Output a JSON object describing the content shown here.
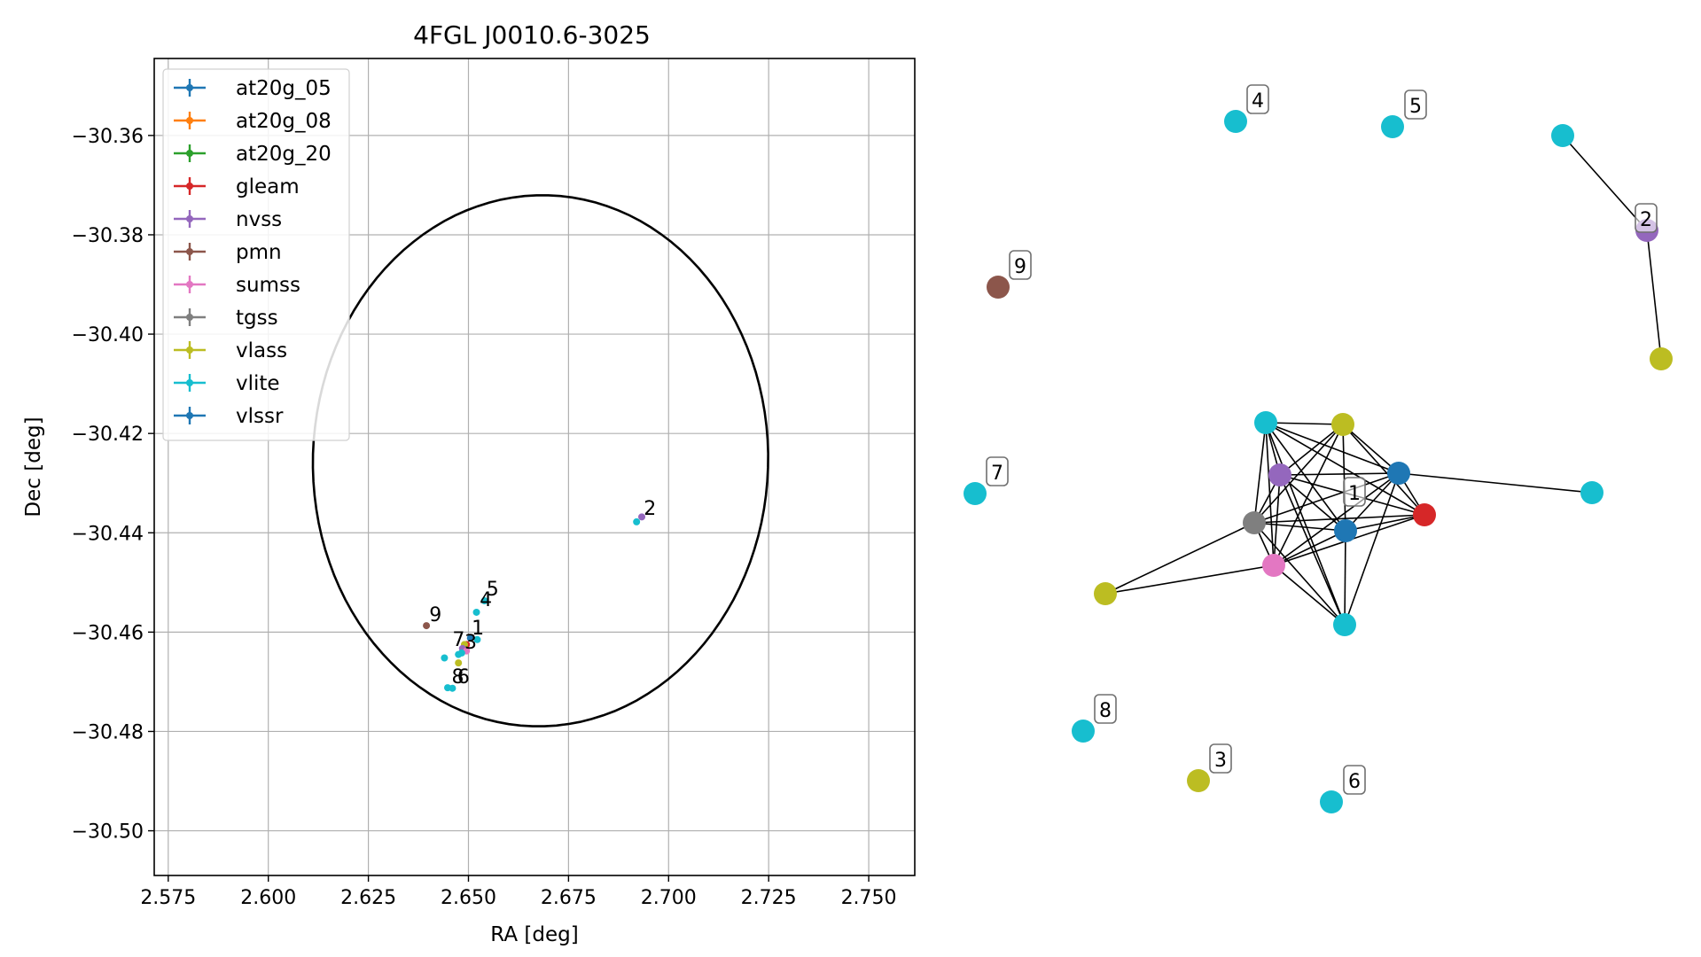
{
  "chart_data": [
    {
      "type": "scatter",
      "title": "4FGL J0010.6-3025",
      "xlabel": "RA [deg]",
      "ylabel": "Dec [deg]",
      "xlim": [
        2.5715,
        2.7615
      ],
      "ylim": [
        -30.509,
        -30.3445
      ],
      "grid": true,
      "legend_placement": "top-left",
      "xticks": [
        2.575,
        2.6,
        2.625,
        2.65,
        2.675,
        2.7,
        2.725,
        2.75
      ],
      "xtick_labels": [
        "2.575",
        "2.600",
        "2.625",
        "2.650",
        "2.675",
        "2.700",
        "2.725",
        "2.750"
      ],
      "yticks": [
        -30.36,
        -30.38,
        -30.4,
        -30.42,
        -30.44,
        -30.46,
        -30.48,
        -30.5
      ],
      "ytick_labels": [
        "−30.36",
        "−30.38",
        "−30.40",
        "−30.42",
        "−30.44",
        "−30.46",
        "−30.48",
        "−30.50"
      ],
      "legend": [
        {
          "name": "at20g_05",
          "color": "#1f77b4"
        },
        {
          "name": "at20g_08",
          "color": "#ff7f0e"
        },
        {
          "name": "at20g_20",
          "color": "#2ca02c"
        },
        {
          "name": "gleam",
          "color": "#d62728"
        },
        {
          "name": "nvss",
          "color": "#9467bd"
        },
        {
          "name": "pmn",
          "color": "#8c564b"
        },
        {
          "name": "sumss",
          "color": "#e377c2"
        },
        {
          "name": "tgss",
          "color": "#7f7f7f"
        },
        {
          "name": "vlass",
          "color": "#bcbd22"
        },
        {
          "name": "vlite",
          "color": "#17becf"
        },
        {
          "name": "vlssr",
          "color": "#1f77b4"
        }
      ],
      "ellipse": {
        "center": [
          2.668,
          -30.4255
        ],
        "semi_axis_ra": 0.058,
        "semi_axis_dec": 0.0545,
        "rotation_deg": 12
      },
      "points": [
        {
          "catalog": "vlite",
          "ra": 2.692,
          "dec": -30.4378
        },
        {
          "catalog": "nvss",
          "ra": 2.6933,
          "dec": -30.4368
        },
        {
          "catalog": "vlite",
          "ra": 2.654,
          "dec": -30.4537
        },
        {
          "catalog": "vlite",
          "ra": 2.652,
          "dec": -30.456
        },
        {
          "catalog": "pmn",
          "ra": 2.6395,
          "dec": -30.4587
        },
        {
          "catalog": "vlite",
          "ra": 2.6522,
          "dec": -30.4615
        },
        {
          "catalog": "vlssr",
          "ra": 2.6505,
          "dec": -30.4612
        },
        {
          "catalog": "gleam",
          "ra": 2.6495,
          "dec": -30.4625
        },
        {
          "catalog": "tgss",
          "ra": 2.6487,
          "dec": -30.4635
        },
        {
          "catalog": "vlass",
          "ra": 2.649,
          "dec": -30.4625
        },
        {
          "catalog": "nvss",
          "ra": 2.6485,
          "dec": -30.4633
        },
        {
          "catalog": "sumss",
          "ra": 2.6495,
          "dec": -30.4638
        },
        {
          "catalog": "vlite",
          "ra": 2.6483,
          "dec": -30.4642
        },
        {
          "catalog": "vlite",
          "ra": 2.6475,
          "dec": -30.4645
        },
        {
          "catalog": "vlass",
          "ra": 2.6475,
          "dec": -30.4662
        },
        {
          "catalog": "vlite",
          "ra": 2.644,
          "dec": -30.4652
        },
        {
          "catalog": "vlite",
          "ra": 2.6448,
          "dec": -30.4712
        },
        {
          "catalog": "vlite",
          "ra": 2.646,
          "dec": -30.4713
        }
      ],
      "group_labels": [
        {
          "text": "2",
          "ra": 2.6938,
          "dec": -30.4364
        },
        {
          "text": "5",
          "ra": 2.6545,
          "dec": -30.4526
        },
        {
          "text": "4",
          "ra": 2.6528,
          "dec": -30.4548
        },
        {
          "text": "9",
          "ra": 2.6402,
          "dec": -30.4578
        },
        {
          "text": "1",
          "ra": 2.6508,
          "dec": -30.4605
        },
        {
          "text": "7",
          "ra": 2.646,
          "dec": -30.4628
        },
        {
          "text": "3",
          "ra": 2.649,
          "dec": -30.4633
        },
        {
          "text": "8",
          "ra": 2.6458,
          "dec": -30.4703
        },
        {
          "text": "6",
          "ra": 2.6472,
          "dec": -30.4703
        }
      ]
    },
    {
      "type": "network",
      "nodes": [
        {
          "id": "c1_vlite_a",
          "color": "#17becf"
        },
        {
          "id": "c1_vlass",
          "color": "#bcbd22"
        },
        {
          "id": "c1_nvss",
          "color": "#9467bd"
        },
        {
          "id": "c1_vlssr",
          "color": "#1f77b4"
        },
        {
          "id": "c1_tgss",
          "color": "#7f7f7f"
        },
        {
          "id": "c1_at20g",
          "color": "#1f77b4"
        },
        {
          "id": "c1_gleam",
          "color": "#d62728"
        },
        {
          "id": "c1_sumss",
          "color": "#e377c2"
        },
        {
          "id": "c1_vlite_b",
          "color": "#17becf"
        },
        {
          "id": "c1_vlass_far",
          "color": "#bcbd22"
        },
        {
          "id": "c1_vlite_far",
          "color": "#17becf"
        },
        {
          "id": "c2_vlite",
          "color": "#17becf"
        },
        {
          "id": "c2_nvss",
          "color": "#9467bd"
        },
        {
          "id": "c2_vlass",
          "color": "#bcbd22"
        },
        {
          "id": "c3_vlass",
          "color": "#bcbd22"
        },
        {
          "id": "c4_vlite",
          "color": "#17becf"
        },
        {
          "id": "c5_vlite",
          "color": "#17becf"
        },
        {
          "id": "c6_vlite",
          "color": "#17becf"
        },
        {
          "id": "c7_vlite",
          "color": "#17becf"
        },
        {
          "id": "c8_vlite",
          "color": "#17becf"
        },
        {
          "id": "c9_pmn",
          "color": "#8c564b"
        }
      ],
      "edges": [
        [
          "c1_vlite_a",
          "c1_vlass"
        ],
        [
          "c1_vlite_a",
          "c1_nvss"
        ],
        [
          "c1_vlite_a",
          "c1_vlssr"
        ],
        [
          "c1_vlite_a",
          "c1_tgss"
        ],
        [
          "c1_vlite_a",
          "c1_at20g"
        ],
        [
          "c1_vlite_a",
          "c1_gleam"
        ],
        [
          "c1_vlite_a",
          "c1_sumss"
        ],
        [
          "c1_vlite_a",
          "c1_vlite_b"
        ],
        [
          "c1_vlass",
          "c1_nvss"
        ],
        [
          "c1_vlass",
          "c1_vlssr"
        ],
        [
          "c1_vlass",
          "c1_tgss"
        ],
        [
          "c1_vlass",
          "c1_at20g"
        ],
        [
          "c1_vlass",
          "c1_gleam"
        ],
        [
          "c1_vlass",
          "c1_sumss"
        ],
        [
          "c1_nvss",
          "c1_vlssr"
        ],
        [
          "c1_nvss",
          "c1_tgss"
        ],
        [
          "c1_nvss",
          "c1_at20g"
        ],
        [
          "c1_nvss",
          "c1_gleam"
        ],
        [
          "c1_nvss",
          "c1_sumss"
        ],
        [
          "c1_nvss",
          "c1_vlite_b"
        ],
        [
          "c1_vlssr",
          "c1_tgss"
        ],
        [
          "c1_vlssr",
          "c1_at20g"
        ],
        [
          "c1_vlssr",
          "c1_gleam"
        ],
        [
          "c1_vlssr",
          "c1_sumss"
        ],
        [
          "c1_vlssr",
          "c1_vlite_b"
        ],
        [
          "c1_vlssr",
          "c1_vlite_far"
        ],
        [
          "c1_tgss",
          "c1_at20g"
        ],
        [
          "c1_tgss",
          "c1_gleam"
        ],
        [
          "c1_tgss",
          "c1_sumss"
        ],
        [
          "c1_tgss",
          "c1_vlite_b"
        ],
        [
          "c1_tgss",
          "c1_vlass_far"
        ],
        [
          "c1_at20g",
          "c1_gleam"
        ],
        [
          "c1_at20g",
          "c1_sumss"
        ],
        [
          "c1_at20g",
          "c1_vlite_b"
        ],
        [
          "c1_gleam",
          "c1_sumss"
        ],
        [
          "c1_sumss",
          "c1_vlite_b"
        ],
        [
          "c1_sumss",
          "c1_vlass_far"
        ],
        [
          "c2_vlite",
          "c2_nvss"
        ],
        [
          "c2_nvss",
          "c2_vlass"
        ]
      ],
      "labels": [
        {
          "text": "1",
          "anchor": "c1_at20g"
        },
        {
          "text": "2",
          "anchor": "c2_nvss"
        },
        {
          "text": "3",
          "anchor": "c3_vlass"
        },
        {
          "text": "4",
          "anchor": "c4_vlite"
        },
        {
          "text": "5",
          "anchor": "c5_vlite"
        },
        {
          "text": "6",
          "anchor": "c6_vlite"
        },
        {
          "text": "7",
          "anchor": "c7_vlite"
        },
        {
          "text": "8",
          "anchor": "c8_vlite"
        },
        {
          "text": "9",
          "anchor": "c9_pmn"
        }
      ]
    }
  ]
}
